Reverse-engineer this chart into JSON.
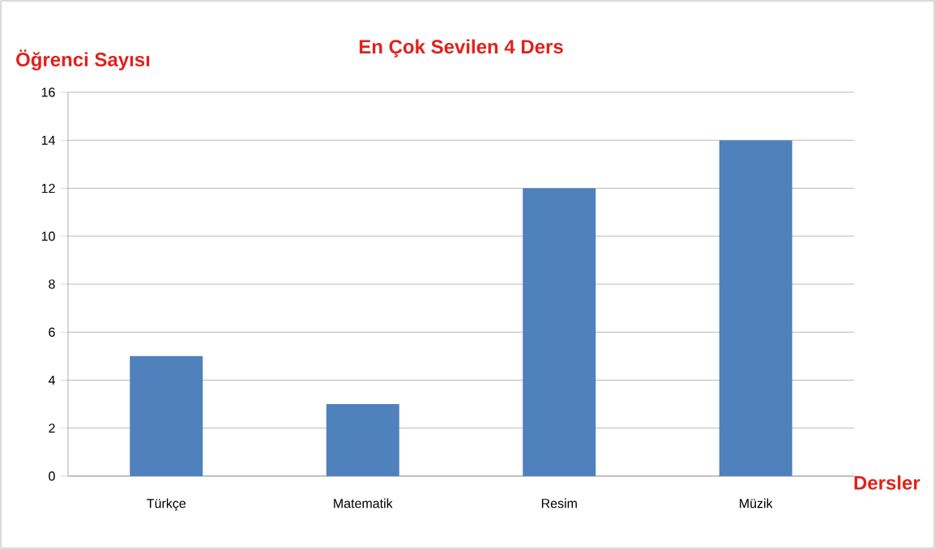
{
  "chart_data": {
    "type": "bar",
    "title": "En Çok Sevilen 4 Ders",
    "ylabel": "Öğrenci Sayısı",
    "xlabel": "Dersler",
    "categories": [
      "Türkçe",
      "Matematik",
      "Resim",
      "Müzik"
    ],
    "values": [
      5,
      3,
      12,
      14
    ],
    "color": "#4f81bd",
    "ylim": [
      0,
      16
    ],
    "yticks": [
      0,
      2,
      4,
      6,
      8,
      10,
      12,
      14,
      16
    ],
    "grid": "y"
  }
}
